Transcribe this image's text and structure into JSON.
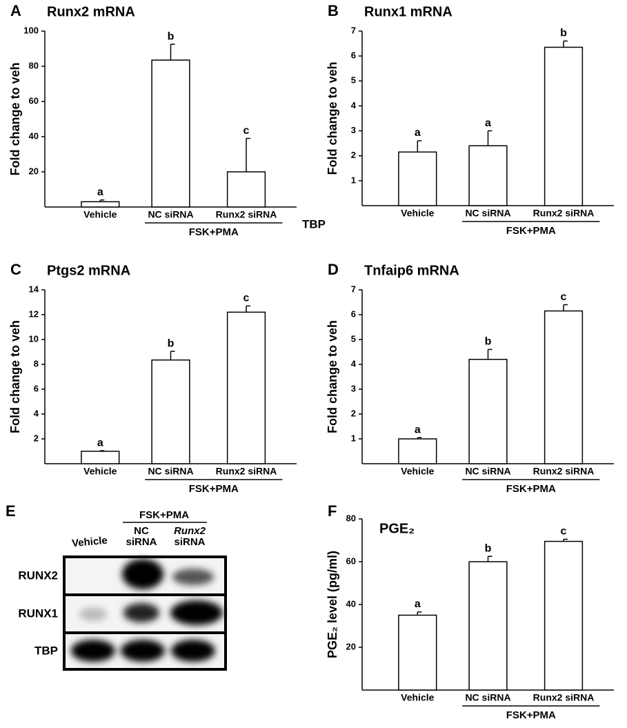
{
  "chart_data": [
    {
      "panel": "A",
      "type": "bar",
      "title": "Runx2 mRNA",
      "ylabel": "Fold change to veh",
      "categories": [
        "Vehicle",
        "NC siRNA",
        "Runx2 siRNA"
      ],
      "group_label": "FSK+PMA",
      "values": [
        3,
        83.5,
        20
      ],
      "errors": [
        1,
        9,
        19
      ],
      "value_labels": [
        "a",
        "b",
        "c"
      ],
      "ylim": [
        0,
        100
      ],
      "yticks": [
        20,
        40,
        60,
        80,
        100
      ],
      "color": "#ffffff",
      "note": "TBP"
    },
    {
      "panel": "B",
      "type": "bar",
      "title": "Runx1 mRNA",
      "ylabel": "Fold change to veh",
      "categories": [
        "Vehicle",
        "NC siRNA",
        "Runx2 siRNA"
      ],
      "group_label": "FSK+PMA",
      "values": [
        2.15,
        2.4,
        6.35
      ],
      "errors": [
        0.45,
        0.6,
        0.25
      ],
      "value_labels": [
        "a",
        "a",
        "b"
      ],
      "ylim": [
        0,
        7
      ],
      "yticks": [
        1,
        2,
        3,
        4,
        5,
        6,
        7
      ],
      "color": "#ffffff"
    },
    {
      "panel": "C",
      "type": "bar",
      "title": "Ptgs2 mRNA",
      "ylabel": "Fold change to veh",
      "categories": [
        "Vehicle",
        "NC siRNA",
        "Runx2 siRNA"
      ],
      "group_label": "FSK+PMA",
      "values": [
        1,
        8.35,
        12.2
      ],
      "errors": [
        0.05,
        0.7,
        0.5
      ],
      "value_labels": [
        "a",
        "b",
        "c"
      ],
      "ylim": [
        0,
        14
      ],
      "yticks": [
        2,
        4,
        6,
        8,
        10,
        12,
        14
      ],
      "color": "#ffffff"
    },
    {
      "panel": "D",
      "type": "bar",
      "title": "Tnfaip6 mRNA",
      "ylabel": "Fold change to veh",
      "categories": [
        "Vehicle",
        "NC siRNA",
        "Runx2 siRNA"
      ],
      "group_label": "FSK+PMA",
      "values": [
        1,
        4.2,
        6.15
      ],
      "errors": [
        0.05,
        0.4,
        0.25
      ],
      "value_labels": [
        "a",
        "b",
        "c"
      ],
      "ylim": [
        0,
        7
      ],
      "yticks": [
        1,
        2,
        3,
        4,
        5,
        6,
        7
      ],
      "color": "#ffffff"
    },
    {
      "panel": "F",
      "type": "bar",
      "title": "PGE₂",
      "ylabel": "PGE₂ level (pg/ml)",
      "categories": [
        "Vehicle",
        "NC siRNA",
        "Runx2 siRNA"
      ],
      "group_label": "FSK+PMA",
      "values": [
        35,
        60,
        69.5
      ],
      "errors": [
        1.5,
        2.5,
        1
      ],
      "value_labels": [
        "a",
        "b",
        "c"
      ],
      "ylim": [
        0,
        80
      ],
      "yticks": [
        20,
        40,
        60,
        80
      ],
      "color": "#ffffff"
    }
  ],
  "blot": {
    "panel": "E",
    "group_label": "FSK+PMA",
    "columns": [
      [
        "Vehicle"
      ],
      [
        "NC",
        "siRNA"
      ],
      [
        "Runx2",
        "siRNA"
      ]
    ],
    "rows": [
      "RUNX2",
      "RUNX1",
      "TBP"
    ]
  }
}
